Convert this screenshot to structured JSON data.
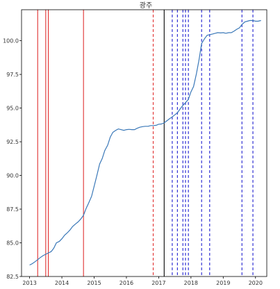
{
  "chart_data": {
    "type": "line",
    "title": "광주",
    "xlabel": "",
    "ylabel": "",
    "xlim": [
      2012.75,
      2020.35
    ],
    "ylim": [
      82.5,
      102.3
    ],
    "xticks": [
      2013,
      2014,
      2015,
      2016,
      2017,
      2018,
      2019,
      2020
    ],
    "xtick_labels": [
      "2013",
      "2014",
      "2015",
      "2016",
      "2017",
      "2018",
      "2019",
      "2020"
    ],
    "yticks": [
      82.5,
      85.0,
      87.5,
      90.0,
      92.5,
      95.0,
      97.5,
      100.0
    ],
    "ytick_labels": [
      "82.5",
      "85.0",
      "87.5",
      "90.0",
      "92.5",
      "95.0",
      "97.5",
      "100.0"
    ],
    "grid": false,
    "colors": {
      "series": "#3a78b8",
      "red_line": "#e03030",
      "black_line": "#000000",
      "blue_dashed": "#2020d0"
    },
    "series": [
      {
        "x": [
          2013.0,
          2013.08,
          2013.17,
          2013.25,
          2013.33,
          2013.42,
          2013.5,
          2013.58,
          2013.67,
          2013.75,
          2013.83,
          2013.92,
          2014.0,
          2014.08,
          2014.17,
          2014.25,
          2014.33,
          2014.42,
          2014.5,
          2014.58,
          2014.67,
          2014.75,
          2014.83,
          2014.92,
          2015.0,
          2015.08,
          2015.17,
          2015.25,
          2015.33,
          2015.42,
          2015.5,
          2015.58,
          2015.67,
          2015.75,
          2015.83,
          2015.92,
          2016.0,
          2016.08,
          2016.17,
          2016.25,
          2016.33,
          2016.42,
          2016.5,
          2016.58,
          2016.67,
          2016.75,
          2016.83,
          2016.92,
          2017.0,
          2017.08,
          2017.17,
          2017.25,
          2017.33,
          2017.42,
          2017.5,
          2017.58,
          2017.67,
          2017.75,
          2017.83,
          2017.92,
          2018.0,
          2018.08,
          2018.17,
          2018.25,
          2018.33,
          2018.42,
          2018.5,
          2018.58,
          2018.67,
          2018.75,
          2018.83,
          2018.92,
          2019.0,
          2019.08,
          2019.17,
          2019.25,
          2019.33,
          2019.42,
          2019.5,
          2019.58,
          2019.67,
          2019.75,
          2019.83,
          2019.92,
          2020.0,
          2020.08,
          2020.17
        ],
        "y": [
          83.35,
          83.45,
          83.6,
          83.75,
          83.9,
          84.05,
          84.15,
          84.25,
          84.35,
          84.6,
          85.0,
          85.1,
          85.3,
          85.55,
          85.75,
          85.95,
          86.2,
          86.4,
          86.55,
          86.75,
          87.05,
          87.55,
          87.95,
          88.45,
          89.2,
          89.95,
          90.85,
          91.25,
          91.85,
          92.25,
          92.85,
          93.2,
          93.35,
          93.45,
          93.4,
          93.35,
          93.4,
          93.42,
          93.4,
          93.4,
          93.5,
          93.58,
          93.62,
          93.65,
          93.65,
          93.7,
          93.7,
          93.72,
          93.8,
          93.82,
          93.9,
          94.05,
          94.2,
          94.35,
          94.5,
          94.65,
          94.95,
          95.2,
          95.4,
          95.65,
          96.2,
          96.6,
          97.55,
          98.6,
          99.8,
          100.15,
          100.4,
          100.45,
          100.5,
          100.55,
          100.6,
          100.58,
          100.6,
          100.55,
          100.6,
          100.6,
          100.7,
          100.85,
          100.95,
          101.2,
          101.4,
          101.45,
          101.5,
          101.5,
          101.45,
          101.45,
          101.5
        ]
      }
    ],
    "red_solid_lines_x": [
      2013.25,
      2013.5,
      2013.58,
      2014.67
    ],
    "red_dashed_lines_x": [
      2016.83
    ],
    "black_solid_lines_x": [
      2017.17
    ],
    "blue_dashed_lines_x": [
      2017.42,
      2017.58,
      2017.75,
      2017.83,
      2017.92,
      2018.33,
      2018.58,
      2019.58,
      2019.92
    ]
  }
}
